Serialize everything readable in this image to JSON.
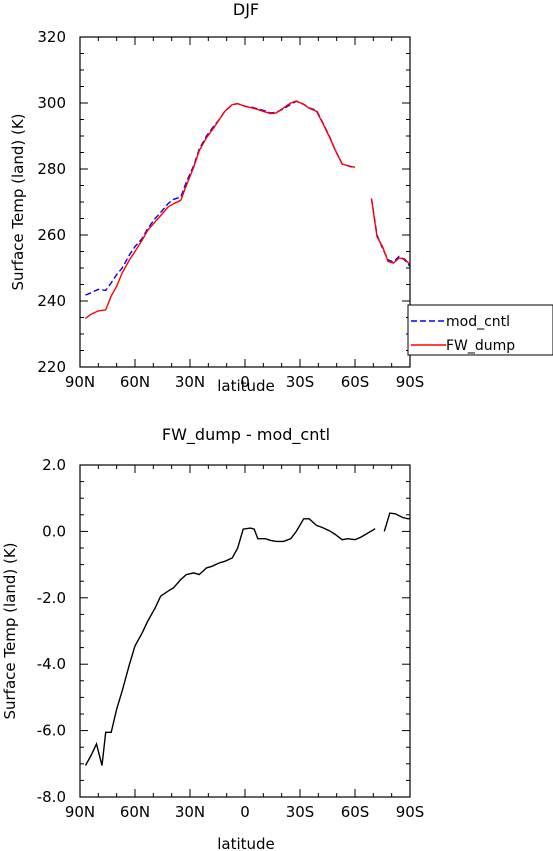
{
  "chart_data": [
    {
      "type": "line",
      "title": "DJF",
      "xlabel": "latitude",
      "ylabel": "Surface Temp (land) (K)",
      "xlim": [
        90,
        -90
      ],
      "ylim": [
        220,
        320
      ],
      "xticks": [
        90,
        60,
        30,
        0,
        -30,
        -60,
        -90
      ],
      "xtick_labels": [
        "90N",
        "60N",
        "30N",
        "0",
        "30S",
        "60S",
        "90S"
      ],
      "yticks": [
        220,
        240,
        260,
        280,
        300,
        320
      ],
      "ytick_labels": [
        "220",
        "240",
        "260",
        "280",
        "300",
        "320"
      ],
      "legend_position": "right",
      "series": [
        {
          "name": "mod_cntl",
          "color": "#0000ff",
          "dash": "dashed",
          "segments": [
            [
              [
                87,
                241.8
              ],
              [
                84,
                242.5
              ],
              [
                80,
                243.5
              ],
              [
                76,
                243.2
              ],
              [
                73,
                245.5
              ],
              [
                70,
                248
              ],
              [
                67,
                250
              ],
              [
                63,
                254
              ],
              [
                60,
                256.5
              ],
              [
                56,
                259
              ],
              [
                53,
                262
              ],
              [
                49,
                265
              ],
              [
                45,
                267.5
              ],
              [
                42,
                269.5
              ],
              [
                39,
                270.8
              ],
              [
                35,
                271.5
              ],
              [
                32,
                276
              ],
              [
                28,
                281
              ],
              [
                25,
                286
              ],
              [
                21,
                290
              ],
              [
                17,
                293
              ],
              [
                14,
                295
              ],
              [
                11,
                297.5
              ],
              [
                7,
                299.5
              ],
              [
                4,
                299.8
              ],
              [
                0,
                299
              ],
              [
                -4,
                298.7
              ],
              [
                -7,
                298.2
              ],
              [
                -11,
                297.6
              ],
              [
                -14,
                297
              ],
              [
                -17,
                297.2
              ],
              [
                -21,
                298.2
              ],
              [
                -25,
                299.6
              ],
              [
                -28,
                300.5
              ],
              [
                -32,
                299.6
              ],
              [
                -35,
                298.5
              ],
              [
                -39,
                297.8
              ],
              [
                -42,
                294.5
              ],
              [
                -46,
                290
              ],
              [
                -49,
                286
              ],
              [
                -53,
                281.5
              ],
              [
                -56,
                281
              ],
              [
                -60,
                280.3
              ]
            ],
            [
              [
                -69,
                271
              ],
              [
                -72,
                260
              ],
              [
                -75,
                256
              ],
              [
                -78,
                252.5
              ],
              [
                -81,
                251.8
              ],
              [
                -84,
                253.5
              ],
              [
                -87,
                252.5
              ],
              [
                -90,
                250.5
              ],
              [
                -92,
                247.5
              ]
            ]
          ]
        },
        {
          "name": "FW_dump",
          "color": "#ff0000",
          "dash": "solid",
          "segments": [
            [
              [
                87,
                234.7
              ],
              [
                84,
                236
              ],
              [
                80,
                237
              ],
              [
                76,
                237.3
              ],
              [
                73,
                241.5
              ],
              [
                70,
                244.5
              ],
              [
                67,
                248.5
              ],
              [
                63,
                252.5
              ],
              [
                60,
                255
              ],
              [
                56,
                258.5
              ],
              [
                53,
                261.5
              ],
              [
                49,
                264
              ],
              [
                45,
                266.5
              ],
              [
                42,
                268.5
              ],
              [
                39,
                269.5
              ],
              [
                35,
                270.5
              ],
              [
                32,
                275
              ],
              [
                28,
                280.5
              ],
              [
                25,
                285.5
              ],
              [
                21,
                289.5
              ],
              [
                17,
                292.5
              ],
              [
                14,
                295
              ],
              [
                11,
                297.5
              ],
              [
                7,
                299.5
              ],
              [
                4,
                299.8
              ],
              [
                0,
                299
              ],
              [
                -4,
                298.5
              ],
              [
                -7,
                298
              ],
              [
                -11,
                297.3
              ],
              [
                -14,
                296.8
              ],
              [
                -17,
                297
              ],
              [
                -21,
                298.5
              ],
              [
                -25,
                300
              ],
              [
                -28,
                300.6
              ],
              [
                -32,
                299.6
              ],
              [
                -35,
                298.4
              ],
              [
                -39,
                297.5
              ],
              [
                -42,
                294.3
              ],
              [
                -46,
                289.8
              ],
              [
                -49,
                286
              ],
              [
                -53,
                281.5
              ],
              [
                -56,
                281
              ],
              [
                -60,
                280.5
              ]
            ],
            [
              [
                -69,
                271
              ],
              [
                -72,
                259.5
              ],
              [
                -75,
                256.5
              ],
              [
                -78,
                252
              ],
              [
                -81,
                251.5
              ],
              [
                -84,
                253
              ],
              [
                -87,
                252.8
              ],
              [
                -90,
                251
              ],
              [
                -92,
                246.5
              ]
            ]
          ]
        }
      ]
    },
    {
      "type": "line",
      "title": "FW_dump - mod_cntl",
      "xlabel": "latitude",
      "ylabel": "Surface Temp (land) (K)",
      "xlim": [
        90,
        -90
      ],
      "ylim": [
        -8,
        2
      ],
      "xticks": [
        90,
        60,
        30,
        0,
        -30,
        -60,
        -90
      ],
      "xtick_labels": [
        "90N",
        "60N",
        "30N",
        "0",
        "30S",
        "60S",
        "90S"
      ],
      "yticks": [
        -8,
        -6,
        -4,
        -2,
        0,
        2
      ],
      "ytick_labels": [
        "-8.0",
        "-6.0",
        "-4.0",
        "-2.0",
        "0.0",
        "2.0"
      ],
      "series": [
        {
          "color": "#000000",
          "dash": "solid",
          "segments": [
            [
              [
                87,
                -7.05
              ],
              [
                84,
                -6.75
              ],
              [
                81,
                -6.4
              ],
              [
                78,
                -7.05
              ],
              [
                76,
                -6.05
              ],
              [
                73,
                -6.05
              ],
              [
                70,
                -5.35
              ],
              [
                67,
                -4.8
              ],
              [
                63,
                -4.0
              ],
              [
                60,
                -3.45
              ],
              [
                56,
                -3.05
              ],
              [
                53,
                -2.7
              ],
              [
                49,
                -2.3
              ],
              [
                46,
                -1.95
              ],
              [
                42,
                -1.8
              ],
              [
                39,
                -1.7
              ],
              [
                35,
                -1.45
              ],
              [
                32,
                -1.3
              ],
              [
                28,
                -1.25
              ],
              [
                25,
                -1.3
              ],
              [
                21,
                -1.1
              ],
              [
                18,
                -1.05
              ],
              [
                14,
                -0.95
              ],
              [
                11,
                -0.9
              ],
              [
                7,
                -0.8
              ],
              [
                4,
                -0.5
              ],
              [
                1,
                0.07
              ],
              [
                -3,
                0.1
              ],
              [
                -5,
                0.07
              ],
              [
                -7,
                -0.22
              ],
              [
                -11,
                -0.22
              ],
              [
                -14,
                -0.27
              ],
              [
                -17,
                -0.3
              ],
              [
                -21,
                -0.3
              ],
              [
                -25,
                -0.22
              ],
              [
                -28,
                0.0
              ],
              [
                -32,
                0.38
              ],
              [
                -35,
                0.38
              ],
              [
                -39,
                0.18
              ],
              [
                -42,
                0.12
              ],
              [
                -46,
                0.02
              ],
              [
                -49,
                -0.08
              ],
              [
                -53,
                -0.25
              ],
              [
                -56,
                -0.22
              ],
              [
                -60,
                -0.25
              ],
              [
                -63,
                -0.18
              ],
              [
                -67,
                -0.05
              ],
              [
                -71,
                0.08
              ]
            ],
            [
              [
                -76,
                0.0
              ],
              [
                -79,
                0.55
              ],
              [
                -82,
                0.53
              ],
              [
                -86,
                0.42
              ],
              [
                -89,
                0.38
              ],
              [
                -92,
                0.42
              ],
              [
                -95,
                0.55
              ],
              [
                -98,
                0.55
              ],
              [
                -100,
                0.45
              ]
            ]
          ]
        }
      ]
    }
  ]
}
